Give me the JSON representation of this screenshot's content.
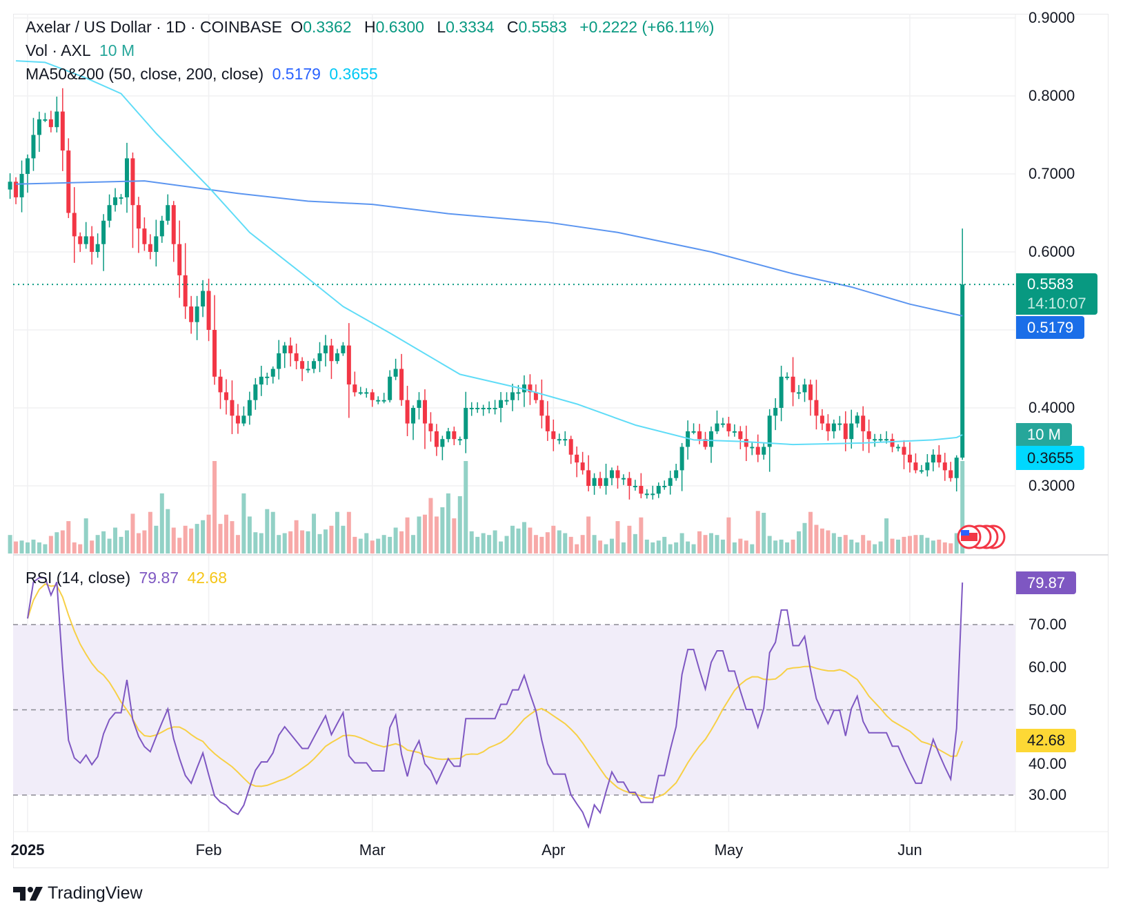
{
  "header": {
    "symbol": "Axelar / US Dollar · 1D · COINBASE",
    "o_label": "O",
    "o": "0.3362",
    "h_label": "H",
    "h": "0.6300",
    "l_label": "L",
    "l": "0.3334",
    "c_label": "C",
    "c": "0.5583",
    "change": "+0.2222 (+66.11%)",
    "vol_label": "Vol · AXL",
    "vol": "10 M",
    "ma_label": "MA50&200 (50, close, 200, close)",
    "ma50": "0.5179",
    "ma200": "0.3655",
    "rsi_label": "RSI (14, close)",
    "rsi": "79.87",
    "rsi_ma": "42.68"
  },
  "price_tags": {
    "last": "0.5583",
    "countdown": "14:10:07",
    "ma50": "0.5179",
    "vol": "10 M",
    "ma200": "0.3655",
    "rsi": "79.87",
    "rsi_ma": "42.68"
  },
  "colors": {
    "up": "#089981",
    "down": "#f23645",
    "ma50": "#5b95f0",
    "ma200": "#5fdcf7",
    "rsi": "#7e57c2",
    "rsi_ma": "#f7d046",
    "rsi_band": "#f1edf9"
  },
  "footer": {
    "brand": "TradingView"
  },
  "chart_data": [
    {
      "type": "candlestick",
      "start_date": "2024-12-29",
      "last": {
        "open": 0.3362,
        "high": 0.63,
        "low": 0.3334,
        "close": 0.5583
      },
      "closes": [
        0.69,
        0.67,
        0.7,
        0.72,
        0.75,
        0.77,
        0.77,
        0.76,
        0.78,
        0.73,
        0.65,
        0.62,
        0.61,
        0.62,
        0.6,
        0.61,
        0.64,
        0.66,
        0.67,
        0.67,
        0.72,
        0.66,
        0.63,
        0.61,
        0.6,
        0.62,
        0.64,
        0.66,
        0.61,
        0.57,
        0.53,
        0.51,
        0.53,
        0.55,
        0.5,
        0.44,
        0.42,
        0.41,
        0.39,
        0.38,
        0.39,
        0.41,
        0.43,
        0.44,
        0.44,
        0.45,
        0.47,
        0.48,
        0.47,
        0.46,
        0.45,
        0.45,
        0.46,
        0.47,
        0.48,
        0.46,
        0.47,
        0.48,
        0.43,
        0.42,
        0.42,
        0.42,
        0.41,
        0.41,
        0.41,
        0.44,
        0.45,
        0.41,
        0.38,
        0.4,
        0.41,
        0.38,
        0.37,
        0.35,
        0.36,
        0.37,
        0.36,
        0.36,
        0.4,
        0.4,
        0.4,
        0.4,
        0.4,
        0.4,
        0.41,
        0.41,
        0.42,
        0.42,
        0.43,
        0.42,
        0.41,
        0.39,
        0.37,
        0.36,
        0.36,
        0.36,
        0.34,
        0.33,
        0.32,
        0.3,
        0.31,
        0.3,
        0.31,
        0.32,
        0.31,
        0.31,
        0.3,
        0.3,
        0.29,
        0.29,
        0.29,
        0.3,
        0.3,
        0.31,
        0.32,
        0.35,
        0.37,
        0.37,
        0.36,
        0.35,
        0.37,
        0.38,
        0.38,
        0.37,
        0.37,
        0.36,
        0.35,
        0.35,
        0.34,
        0.35,
        0.39,
        0.4,
        0.44,
        0.44,
        0.42,
        0.42,
        0.43,
        0.41,
        0.39,
        0.38,
        0.37,
        0.38,
        0.38,
        0.36,
        0.38,
        0.39,
        0.37,
        0.36,
        0.36,
        0.36,
        0.36,
        0.35,
        0.35,
        0.34,
        0.33,
        0.32,
        0.32,
        0.33,
        0.34,
        0.33,
        0.32,
        0.31,
        0.3362,
        0.5583
      ],
      "volume_m": [
        2.0,
        1.3,
        1.4,
        1.2,
        1.5,
        1.2,
        1.0,
        1.9,
        2.3,
        2.5,
        3.5,
        1.2,
        1.0,
        3.8,
        1.4,
        2.0,
        2.4,
        1.6,
        2.8,
        1.8,
        2.5,
        4.3,
        2.2,
        2.5,
        4.5,
        3.0,
        6.5,
        4.8,
        2.8,
        1.7,
        3.0,
        2.7,
        3.2,
        3.6,
        4.2,
        10.0,
        3.2,
        4.2,
        3.5,
        2.0,
        6.5,
        4.0,
        2.3,
        2.2,
        4.8,
        4.5,
        2.0,
        2.2,
        2.4,
        3.6,
        2.5,
        2.4,
        4.3,
        2.1,
        2.6,
        3.0,
        4.5,
        3.0,
        4.5,
        1.8,
        1.6,
        2.2,
        1.4,
        1.6,
        2.0,
        1.8,
        2.8,
        2.4,
        3.9,
        2.0,
        4.0,
        4.2,
        6.0,
        4.0,
        5.0,
        6.5,
        3.8,
        6.2,
        10.0,
        2.4,
        1.8,
        2.2,
        2.0,
        2.5,
        1.3,
        1.9,
        3.0,
        2.7,
        3.4,
        2.8,
        2.0,
        1.8,
        2.3,
        3.0,
        2.5,
        2.2,
        1.8,
        1.0,
        2.0,
        4.0,
        2.0,
        1.4,
        1.0,
        1.6,
        3.5,
        1.2,
        3.0,
        2.1,
        3.9,
        1.5,
        1.2,
        1.4,
        1.8,
        1.0,
        1.2,
        2.2,
        1.3,
        1.0,
        2.4,
        2.0,
        2.2,
        2.0,
        1.5,
        3.9,
        1.2,
        1.6,
        1.4,
        1.0,
        4.6,
        4.4,
        1.9,
        1.4,
        1.5,
        1.2,
        1.5,
        2.4,
        3.3,
        4.5,
        3.1,
        2.7,
        2.5,
        2.2,
        1.8,
        2.0,
        1.5,
        1.2,
        2.0,
        1.4,
        1.0,
        1.3,
        3.8,
        1.6,
        1.5,
        1.8,
        1.9,
        2.0,
        2.0,
        1.7,
        1.4,
        1.5,
        1.2,
        1.1,
        2.2,
        10.0
      ],
      "ma50": [
        [
          1,
          0.687
        ],
        [
          23,
          0.691
        ],
        [
          39,
          0.675
        ],
        [
          51,
          0.665
        ],
        [
          62,
          0.661
        ],
        [
          75,
          0.649
        ],
        [
          92,
          0.638
        ],
        [
          104,
          0.625
        ],
        [
          120,
          0.6
        ],
        [
          134,
          0.572
        ],
        [
          144,
          0.555
        ],
        [
          154,
          0.533
        ],
        [
          163,
          0.5179
        ]
      ],
      "ma200": [
        [
          1,
          0.845
        ],
        [
          6,
          0.843
        ],
        [
          13,
          0.823
        ],
        [
          19,
          0.803
        ],
        [
          25,
          0.752
        ],
        [
          34,
          0.683
        ],
        [
          41,
          0.625
        ],
        [
          50,
          0.572
        ],
        [
          57,
          0.53
        ],
        [
          65,
          0.496
        ],
        [
          77,
          0.443
        ],
        [
          88,
          0.424
        ],
        [
          97,
          0.405
        ],
        [
          107,
          0.378
        ],
        [
          117,
          0.359
        ],
        [
          125,
          0.357
        ],
        [
          134,
          0.353
        ],
        [
          146,
          0.355
        ],
        [
          158,
          0.359
        ],
        [
          162,
          0.362
        ],
        [
          163,
          0.3655
        ]
      ],
      "y_ticks": [
        "0.9000",
        "0.8000",
        "0.7000",
        "0.6000",
        "0.4000",
        "0.3000"
      ],
      "x_ticks": [
        {
          "label": "2025",
          "date": "2025-01-01"
        },
        {
          "label": "Feb",
          "date": "2025-02-01"
        },
        {
          "label": "Mar",
          "date": "2025-03-01"
        },
        {
          "label": "Apr",
          "date": "2025-04-01"
        },
        {
          "label": "May",
          "date": "2025-05-01"
        },
        {
          "label": "Jun",
          "date": "2025-06-01"
        }
      ],
      "ylim": [
        0.22,
        0.92
      ]
    },
    {
      "type": "line",
      "name": "RSI (14, close)",
      "levels": [
        70,
        50,
        30
      ],
      "band": [
        30,
        70
      ],
      "y_ticks": [
        "70.00",
        "60.00",
        "50.00",
        "40.00",
        "30.00"
      ],
      "last_rsi": 79.87,
      "last_ma": 42.68
    }
  ]
}
